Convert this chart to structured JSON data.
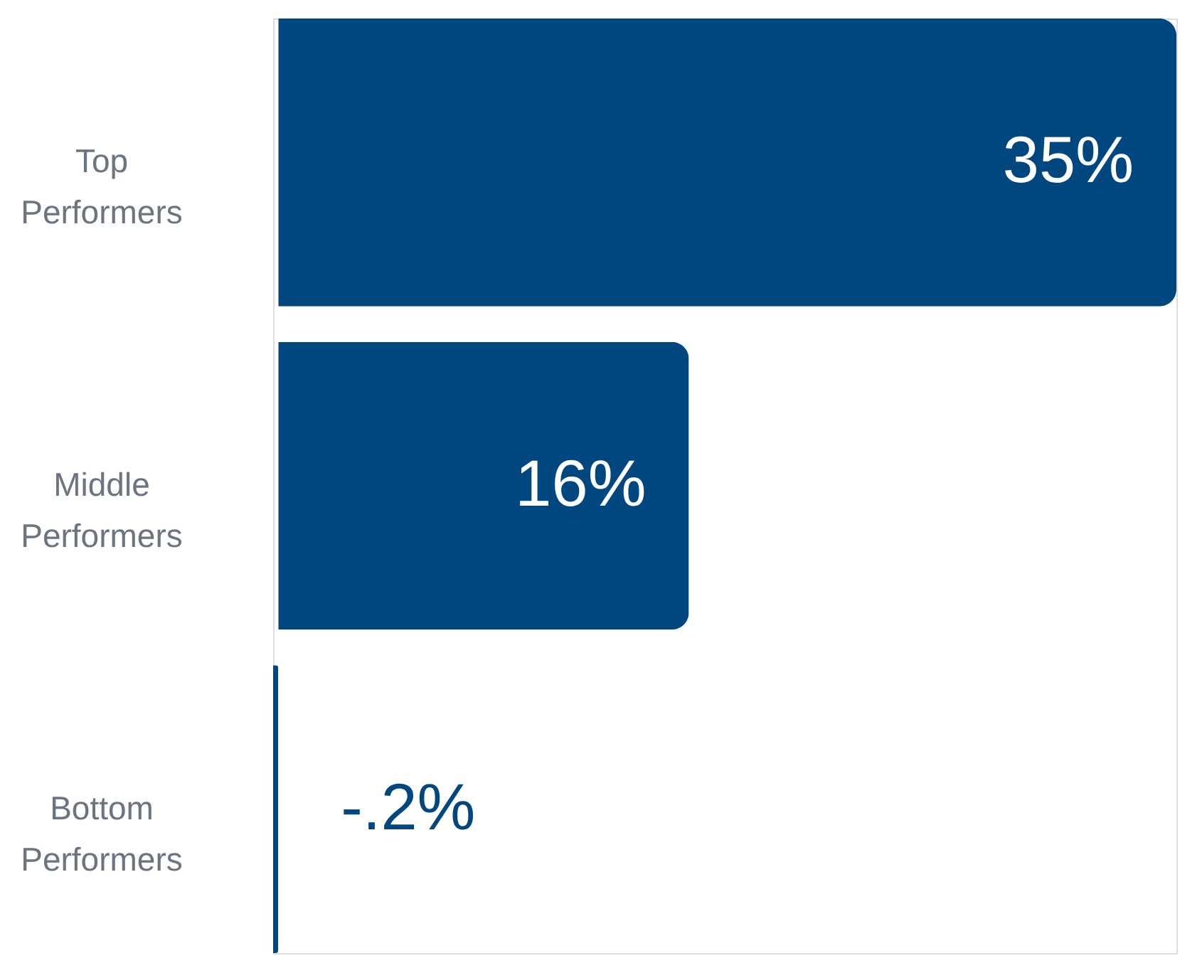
{
  "chart_data": {
    "type": "bar",
    "orientation": "horizontal",
    "tick_labels": "y",
    "categories": [
      "Top Performers",
      "Middle Performers",
      "Bottom Performers"
    ],
    "values": [
      35,
      16,
      -0.2
    ],
    "color": "#00467f",
    "value_labels": [
      "35%",
      "16%",
      "-.2%"
    ]
  }
}
